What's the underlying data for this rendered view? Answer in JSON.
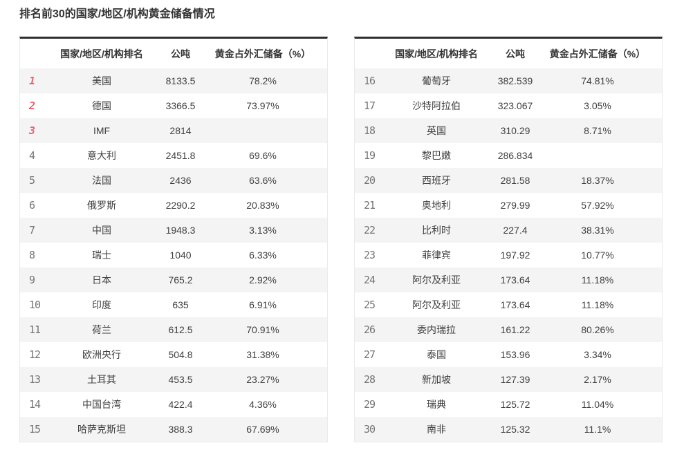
{
  "title": "排名前30的国家/地区/机构黄金储备情况",
  "columns": {
    "rank": "",
    "name": "国家/地区/机构排名",
    "tons": "公吨",
    "pct": "黄金占外汇储备（%）"
  },
  "colors": {
    "accent_rank_top3": "#ef5e6a",
    "rank_normal": "#757575",
    "stripe": "#f4f4f4",
    "table_top_border": "#2e2e2e"
  },
  "left_table": {
    "rows": [
      {
        "rank": "1",
        "name": "美国",
        "tons": "8133.5",
        "pct": "78.2%"
      },
      {
        "rank": "2",
        "name": "德国",
        "tons": "3366.5",
        "pct": "73.97%"
      },
      {
        "rank": "3",
        "name": "IMF",
        "tons": "2814",
        "pct": ""
      },
      {
        "rank": "4",
        "name": "意大利",
        "tons": "2451.8",
        "pct": "69.6%"
      },
      {
        "rank": "5",
        "name": "法国",
        "tons": "2436",
        "pct": "63.6%"
      },
      {
        "rank": "6",
        "name": "俄罗斯",
        "tons": "2290.2",
        "pct": "20.83%"
      },
      {
        "rank": "7",
        "name": "中国",
        "tons": "1948.3",
        "pct": "3.13%"
      },
      {
        "rank": "8",
        "name": "瑞士",
        "tons": "1040",
        "pct": "6.33%"
      },
      {
        "rank": "9",
        "name": "日本",
        "tons": "765.2",
        "pct": "2.92%"
      },
      {
        "rank": "10",
        "name": "印度",
        "tons": "635",
        "pct": "6.91%"
      },
      {
        "rank": "11",
        "name": "荷兰",
        "tons": "612.5",
        "pct": "70.91%"
      },
      {
        "rank": "12",
        "name": "欧洲央行",
        "tons": "504.8",
        "pct": "31.38%"
      },
      {
        "rank": "13",
        "name": "土耳其",
        "tons": "453.5",
        "pct": "23.27%"
      },
      {
        "rank": "14",
        "name": "中国台湾",
        "tons": "422.4",
        "pct": "4.36%"
      },
      {
        "rank": "15",
        "name": "哈萨克斯坦",
        "tons": "388.3",
        "pct": "67.69%"
      }
    ]
  },
  "right_table": {
    "rows": [
      {
        "rank": "16",
        "name": "葡萄牙",
        "tons": "382.539",
        "pct": "74.81%"
      },
      {
        "rank": "17",
        "name": "沙特阿拉伯",
        "tons": "323.067",
        "pct": "3.05%"
      },
      {
        "rank": "18",
        "name": "英国",
        "tons": "310.29",
        "pct": "8.71%"
      },
      {
        "rank": "19",
        "name": "黎巴嫩",
        "tons": "286.834",
        "pct": ""
      },
      {
        "rank": "20",
        "name": "西班牙",
        "tons": "281.58",
        "pct": "18.37%"
      },
      {
        "rank": "21",
        "name": "奥地利",
        "tons": "279.99",
        "pct": "57.92%"
      },
      {
        "rank": "22",
        "name": "比利时",
        "tons": "227.4",
        "pct": "38.31%"
      },
      {
        "rank": "23",
        "name": "菲律宾",
        "tons": "197.92",
        "pct": "10.77%"
      },
      {
        "rank": "24",
        "name": "阿尔及利亚",
        "tons": "173.64",
        "pct": "11.18%"
      },
      {
        "rank": "25",
        "name": "阿尔及利亚",
        "tons": "173.64",
        "pct": "11.18%"
      },
      {
        "rank": "26",
        "name": "委内瑞拉",
        "tons": "161.22",
        "pct": "80.26%"
      },
      {
        "rank": "27",
        "name": "泰国",
        "tons": "153.96",
        "pct": "3.34%"
      },
      {
        "rank": "28",
        "name": "新加坡",
        "tons": "127.39",
        "pct": "2.17%"
      },
      {
        "rank": "29",
        "name": "瑞典",
        "tons": "125.72",
        "pct": "11.04%"
      },
      {
        "rank": "30",
        "name": "南非",
        "tons": "125.32",
        "pct": "11.1%"
      }
    ]
  },
  "chart_data": {
    "type": "table",
    "title": "排名前30的国家/地区/机构黄金储备情况",
    "columns": [
      "排名",
      "国家/地区/机构",
      "公吨",
      "黄金占外汇储备（%）"
    ],
    "rows": [
      [
        "1",
        "美国",
        "8133.5",
        "78.2%"
      ],
      [
        "2",
        "德国",
        "3366.5",
        "73.97%"
      ],
      [
        "3",
        "IMF",
        "2814",
        ""
      ],
      [
        "4",
        "意大利",
        "2451.8",
        "69.6%"
      ],
      [
        "5",
        "法国",
        "2436",
        "63.6%"
      ],
      [
        "6",
        "俄罗斯",
        "2290.2",
        "20.83%"
      ],
      [
        "7",
        "中国",
        "1948.3",
        "3.13%"
      ],
      [
        "8",
        "瑞士",
        "1040",
        "6.33%"
      ],
      [
        "9",
        "日本",
        "765.2",
        "2.92%"
      ],
      [
        "10",
        "印度",
        "635",
        "6.91%"
      ],
      [
        "11",
        "荷兰",
        "612.5",
        "70.91%"
      ],
      [
        "12",
        "欧洲央行",
        "504.8",
        "31.38%"
      ],
      [
        "13",
        "土耳其",
        "453.5",
        "23.27%"
      ],
      [
        "14",
        "中国台湾",
        "422.4",
        "4.36%"
      ],
      [
        "15",
        "哈萨克斯坦",
        "388.3",
        "67.69%"
      ],
      [
        "16",
        "葡萄牙",
        "382.539",
        "74.81%"
      ],
      [
        "17",
        "沙特阿拉伯",
        "323.067",
        "3.05%"
      ],
      [
        "18",
        "英国",
        "310.29",
        "8.71%"
      ],
      [
        "19",
        "黎巴嫩",
        "286.834",
        ""
      ],
      [
        "20",
        "西班牙",
        "281.58",
        "18.37%"
      ],
      [
        "21",
        "奥地利",
        "279.99",
        "57.92%"
      ],
      [
        "22",
        "比利时",
        "227.4",
        "38.31%"
      ],
      [
        "23",
        "菲律宾",
        "197.92",
        "10.77%"
      ],
      [
        "24",
        "阿尔及利亚",
        "173.64",
        "11.18%"
      ],
      [
        "25",
        "阿尔及利亚",
        "173.64",
        "11.18%"
      ],
      [
        "26",
        "委内瑞拉",
        "161.22",
        "80.26%"
      ],
      [
        "27",
        "泰国",
        "153.96",
        "3.34%"
      ],
      [
        "28",
        "新加坡",
        "127.39",
        "2.17%"
      ],
      [
        "29",
        "瑞典",
        "125.72",
        "11.04%"
      ],
      [
        "30",
        "南非",
        "125.32",
        "11.1%"
      ]
    ]
  }
}
